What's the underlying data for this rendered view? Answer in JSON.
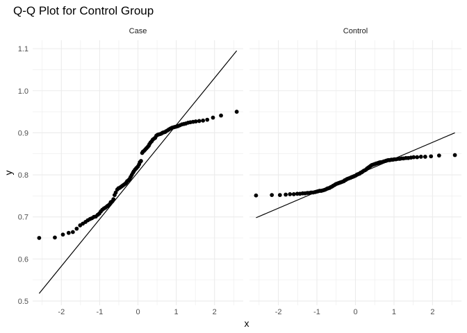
{
  "chart_data": {
    "type": "scatter",
    "title": "Q-Q Plot for Control Group",
    "xlabel": "x",
    "ylabel": "y",
    "xlim": [
      -2.75,
      2.75
    ],
    "ylim": [
      0.49,
      1.12
    ],
    "x_ticks": [
      -2,
      -1,
      0,
      1,
      2
    ],
    "x_tick_labels": [
      "-2",
      "-1",
      "0",
      "1",
      "2"
    ],
    "y_ticks": [
      0.5,
      0.6,
      0.7,
      0.8,
      0.9,
      1.0,
      1.1
    ],
    "y_tick_labels": [
      "0.5",
      "0.6",
      "0.7",
      "0.8",
      "0.9",
      "1.0",
      "1.1"
    ],
    "grid": true,
    "colors": {
      "points": "#000000",
      "line": "#000000",
      "grid": "#ebebeb"
    },
    "panels": [
      {
        "label": "Case",
        "reference_line": {
          "x": [
            -2.58,
            2.58
          ],
          "y": [
            0.518,
            1.095
          ]
        },
        "points": {
          "x": [
            -2.58,
            -2.17,
            -1.96,
            -1.81,
            -1.7,
            -1.6,
            -1.51,
            -1.44,
            -1.37,
            -1.31,
            -1.25,
            -1.2,
            -1.15,
            -1.1,
            -1.05,
            -1.01,
            -0.97,
            -0.93,
            -0.89,
            -0.85,
            -0.81,
            -0.78,
            -0.74,
            -0.71,
            -0.67,
            -0.64,
            -0.61,
            -0.58,
            -0.54,
            -0.51,
            -0.48,
            -0.45,
            -0.42,
            -0.39,
            -0.36,
            -0.33,
            -0.3,
            -0.28,
            -0.25,
            -0.22,
            -0.19,
            -0.16,
            -0.13,
            -0.11,
            -0.08,
            -0.05,
            -0.03,
            0.0,
            0.03,
            0.05,
            0.08,
            0.11,
            0.13,
            0.16,
            0.19,
            0.22,
            0.25,
            0.28,
            0.3,
            0.33,
            0.36,
            0.39,
            0.42,
            0.45,
            0.48,
            0.51,
            0.54,
            0.58,
            0.61,
            0.64,
            0.67,
            0.71,
            0.74,
            0.78,
            0.81,
            0.85,
            0.89,
            0.93,
            0.97,
            1.01,
            1.05,
            1.1,
            1.15,
            1.2,
            1.25,
            1.31,
            1.37,
            1.44,
            1.51,
            1.6,
            1.7,
            1.81,
            1.96,
            2.17,
            2.58
          ],
          "y": [
            0.65,
            0.651,
            0.658,
            0.662,
            0.664,
            0.672,
            0.68,
            0.684,
            0.688,
            0.692,
            0.695,
            0.697,
            0.7,
            0.701,
            0.705,
            0.708,
            0.713,
            0.717,
            0.72,
            0.722,
            0.725,
            0.727,
            0.73,
            0.735,
            0.737,
            0.742,
            0.752,
            0.758,
            0.765,
            0.768,
            0.769,
            0.771,
            0.773,
            0.775,
            0.777,
            0.779,
            0.782,
            0.785,
            0.787,
            0.79,
            0.795,
            0.8,
            0.805,
            0.808,
            0.812,
            0.815,
            0.817,
            0.82,
            0.825,
            0.83,
            0.833,
            0.852,
            0.855,
            0.857,
            0.86,
            0.863,
            0.866,
            0.869,
            0.873,
            0.877,
            0.88,
            0.884,
            0.886,
            0.888,
            0.893,
            0.895,
            0.896,
            0.897,
            0.898,
            0.9,
            0.901,
            0.902,
            0.904,
            0.906,
            0.908,
            0.91,
            0.912,
            0.913,
            0.914,
            0.915,
            0.916,
            0.918,
            0.92,
            0.921,
            0.922,
            0.924,
            0.925,
            0.926,
            0.927,
            0.928,
            0.929,
            0.931,
            0.936,
            0.941,
            0.95
          ]
        }
      },
      {
        "label": "Control",
        "reference_line": {
          "x": [
            -2.58,
            2.58
          ],
          "y": [
            0.698,
            0.9
          ]
        },
        "points": {
          "x": [
            -2.58,
            -2.17,
            -1.96,
            -1.81,
            -1.7,
            -1.6,
            -1.51,
            -1.44,
            -1.37,
            -1.31,
            -1.25,
            -1.2,
            -1.15,
            -1.1,
            -1.05,
            -1.01,
            -0.97,
            -0.93,
            -0.89,
            -0.85,
            -0.81,
            -0.78,
            -0.74,
            -0.71,
            -0.67,
            -0.64,
            -0.61,
            -0.58,
            -0.54,
            -0.51,
            -0.48,
            -0.45,
            -0.42,
            -0.39,
            -0.36,
            -0.33,
            -0.3,
            -0.28,
            -0.25,
            -0.22,
            -0.19,
            -0.16,
            -0.13,
            -0.11,
            -0.08,
            -0.05,
            -0.03,
            0.0,
            0.03,
            0.05,
            0.08,
            0.11,
            0.13,
            0.16,
            0.19,
            0.22,
            0.25,
            0.28,
            0.3,
            0.33,
            0.36,
            0.39,
            0.42,
            0.45,
            0.48,
            0.51,
            0.54,
            0.58,
            0.61,
            0.64,
            0.67,
            0.71,
            0.74,
            0.78,
            0.81,
            0.85,
            0.89,
            0.93,
            0.97,
            1.01,
            1.05,
            1.1,
            1.15,
            1.2,
            1.25,
            1.31,
            1.37,
            1.44,
            1.51,
            1.6,
            1.7,
            1.81,
            1.96,
            2.17,
            2.58
          ],
          "y": [
            0.751,
            0.752,
            0.752,
            0.753,
            0.754,
            0.754,
            0.755,
            0.755,
            0.756,
            0.756,
            0.757,
            0.757,
            0.758,
            0.758,
            0.759,
            0.76,
            0.761,
            0.762,
            0.762,
            0.763,
            0.764,
            0.765,
            0.767,
            0.768,
            0.769,
            0.771,
            0.772,
            0.774,
            0.776,
            0.778,
            0.779,
            0.78,
            0.781,
            0.782,
            0.783,
            0.784,
            0.785,
            0.787,
            0.788,
            0.79,
            0.791,
            0.792,
            0.793,
            0.794,
            0.795,
            0.796,
            0.797,
            0.798,
            0.8,
            0.801,
            0.802,
            0.803,
            0.805,
            0.806,
            0.808,
            0.81,
            0.811,
            0.813,
            0.815,
            0.817,
            0.819,
            0.821,
            0.823,
            0.824,
            0.825,
            0.826,
            0.827,
            0.828,
            0.829,
            0.83,
            0.83,
            0.831,
            0.832,
            0.833,
            0.834,
            0.835,
            0.835,
            0.836,
            0.836,
            0.837,
            0.837,
            0.838,
            0.838,
            0.839,
            0.839,
            0.84,
            0.84,
            0.841,
            0.842,
            0.842,
            0.843,
            0.843,
            0.844,
            0.846,
            0.847
          ]
        }
      }
    ]
  }
}
